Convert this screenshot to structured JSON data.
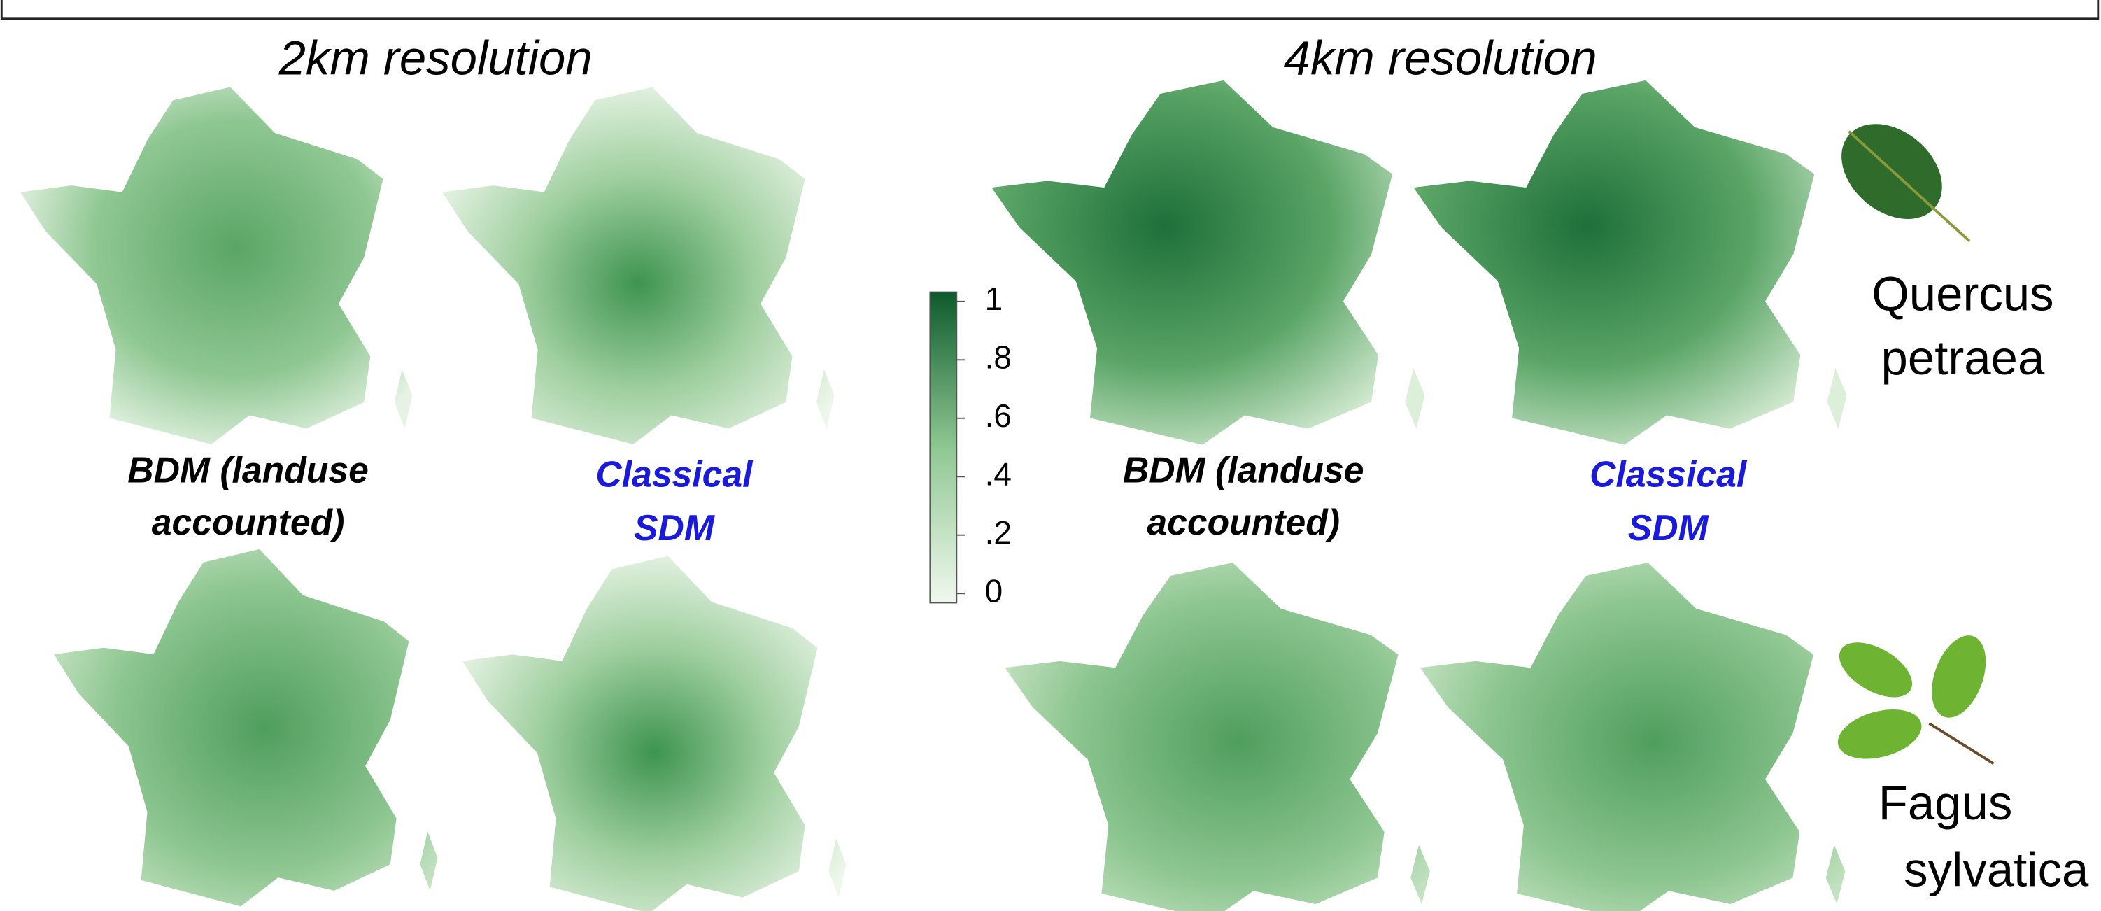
{
  "resolutions": [
    {
      "title": "2km resolution",
      "models": [
        [
          "BDM (landuse",
          "accounted)"
        ],
        [
          "Classical",
          "SDM"
        ]
      ]
    },
    {
      "title": "4km resolution",
      "models": [
        [
          "BDM (landuse",
          "accounted)"
        ],
        [
          "Classical",
          "SDM"
        ]
      ]
    }
  ],
  "colorbar": {
    "labels": [
      "1",
      ".8",
      ".6",
      ".4",
      ".2",
      "0"
    ]
  },
  "species": [
    [
      "Quercus",
      "petraea"
    ],
    [
      "Fagus",
      "sylvatica"
    ]
  ]
}
